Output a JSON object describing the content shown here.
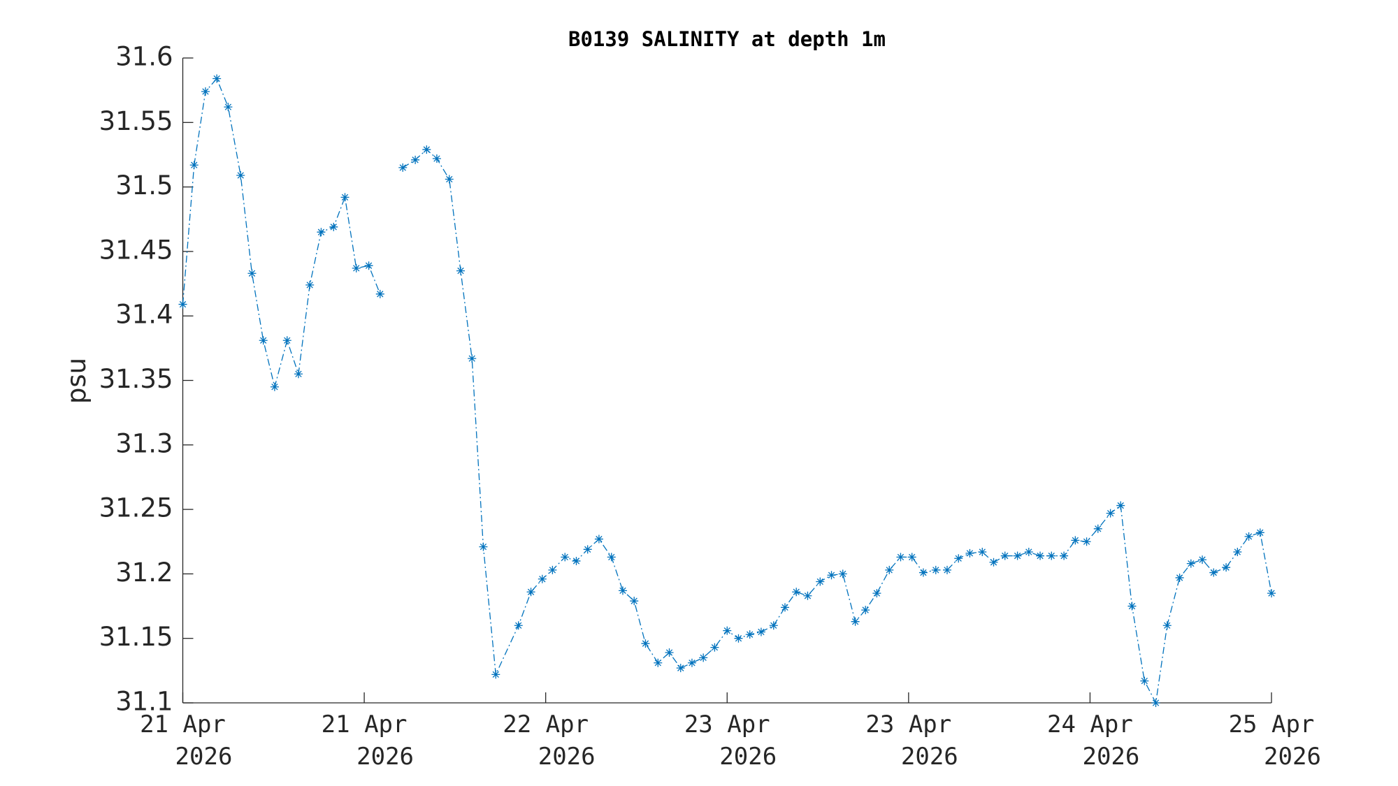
{
  "chart_data": {
    "type": "line",
    "title": "B0139 SALINITY at depth 1m",
    "ylabel": "psu",
    "xlim": [
      0,
      96
    ],
    "xticks": [
      {
        "value": 0,
        "label": [
          "21 Apr",
          "2026"
        ]
      },
      {
        "value": 16,
        "label": [
          "21 Apr",
          "2026"
        ]
      },
      {
        "value": 32,
        "label": [
          "22 Apr",
          "2026"
        ]
      },
      {
        "value": 48,
        "label": [
          "23 Apr",
          "2026"
        ]
      },
      {
        "value": 64,
        "label": [
          "23 Apr",
          "2026"
        ]
      },
      {
        "value": 80,
        "label": [
          "24 Apr",
          "2026"
        ]
      },
      {
        "value": 96,
        "label": [
          "25 Apr",
          "2026"
        ]
      }
    ],
    "ylim": [
      31.1,
      31.6
    ],
    "yticks": [
      31.1,
      31.15,
      31.2,
      31.25,
      31.3,
      31.35,
      31.4,
      31.45,
      31.5,
      31.55,
      31.6
    ],
    "grid": false,
    "x": [
      0,
      1,
      2,
      3,
      4,
      5.1,
      6.1,
      7.1,
      8.1,
      9.2,
      10.2,
      11.2,
      12.2,
      13.3,
      14.3,
      15.3,
      16.4,
      17.4,
      18.4,
      19.4,
      20.5,
      21.5,
      22.4,
      23.5,
      24.5,
      25.5,
      26.5,
      27.6,
      29.6,
      30.7,
      31.7,
      32.6,
      33.7,
      34.7,
      35.7,
      36.7,
      37.8,
      38.8,
      39.8,
      40.8,
      41.9,
      42.9,
      43.9,
      44.9,
      45.9,
      46.9,
      48,
      49,
      50,
      51,
      52.1,
      53.1,
      54.1,
      55.1,
      56.2,
      57.2,
      58.2,
      59.3,
      60.2,
      61.2,
      62.3,
      63.3,
      64.3,
      65.3,
      66.4,
      67.4,
      68.4,
      69.4,
      70.5,
      71.5,
      72.5,
      73.6,
      74.6,
      75.6,
      76.6,
      77.7,
      78.7,
      79.7,
      80.7,
      81.8,
      82.7,
      83.7,
      84.8,
      85.8,
      86.8,
      87.9,
      88.9,
      89.9,
      90.9,
      92,
      93,
      94,
      95,
      96
    ],
    "series": [
      {
        "name": "psu",
        "color": "#0072bd",
        "values": [
          31.409,
          31.517,
          31.574,
          31.584,
          31.562,
          31.509,
          31.433,
          31.381,
          31.345,
          31.381,
          31.355,
          31.424,
          31.465,
          31.469,
          31.492,
          31.437,
          31.439,
          31.417,
          null,
          31.515,
          31.521,
          31.529,
          31.522,
          31.506,
          31.435,
          31.367,
          31.221,
          31.122,
          31.16,
          31.186,
          31.196,
          31.203,
          31.213,
          31.21,
          31.219,
          31.227,
          31.213,
          31.187,
          31.179,
          31.146,
          31.131,
          31.139,
          31.127,
          31.131,
          31.135,
          31.143,
          31.156,
          31.15,
          31.153,
          31.155,
          31.16,
          31.174,
          31.186,
          31.183,
          31.194,
          31.199,
          31.2,
          31.163,
          31.172,
          31.185,
          31.203,
          31.213,
          31.213,
          31.201,
          31.203,
          31.203,
          31.212,
          31.216,
          31.217,
          31.209,
          31.214,
          31.214,
          31.217,
          31.214,
          31.214,
          31.214,
          31.226,
          31.225,
          31.235,
          31.247,
          31.253,
          31.175,
          31.117,
          31.1,
          31.16,
          31.197,
          31.208,
          31.211,
          31.201,
          31.205,
          31.217,
          31.229,
          31.232,
          31.185
        ]
      }
    ]
  }
}
